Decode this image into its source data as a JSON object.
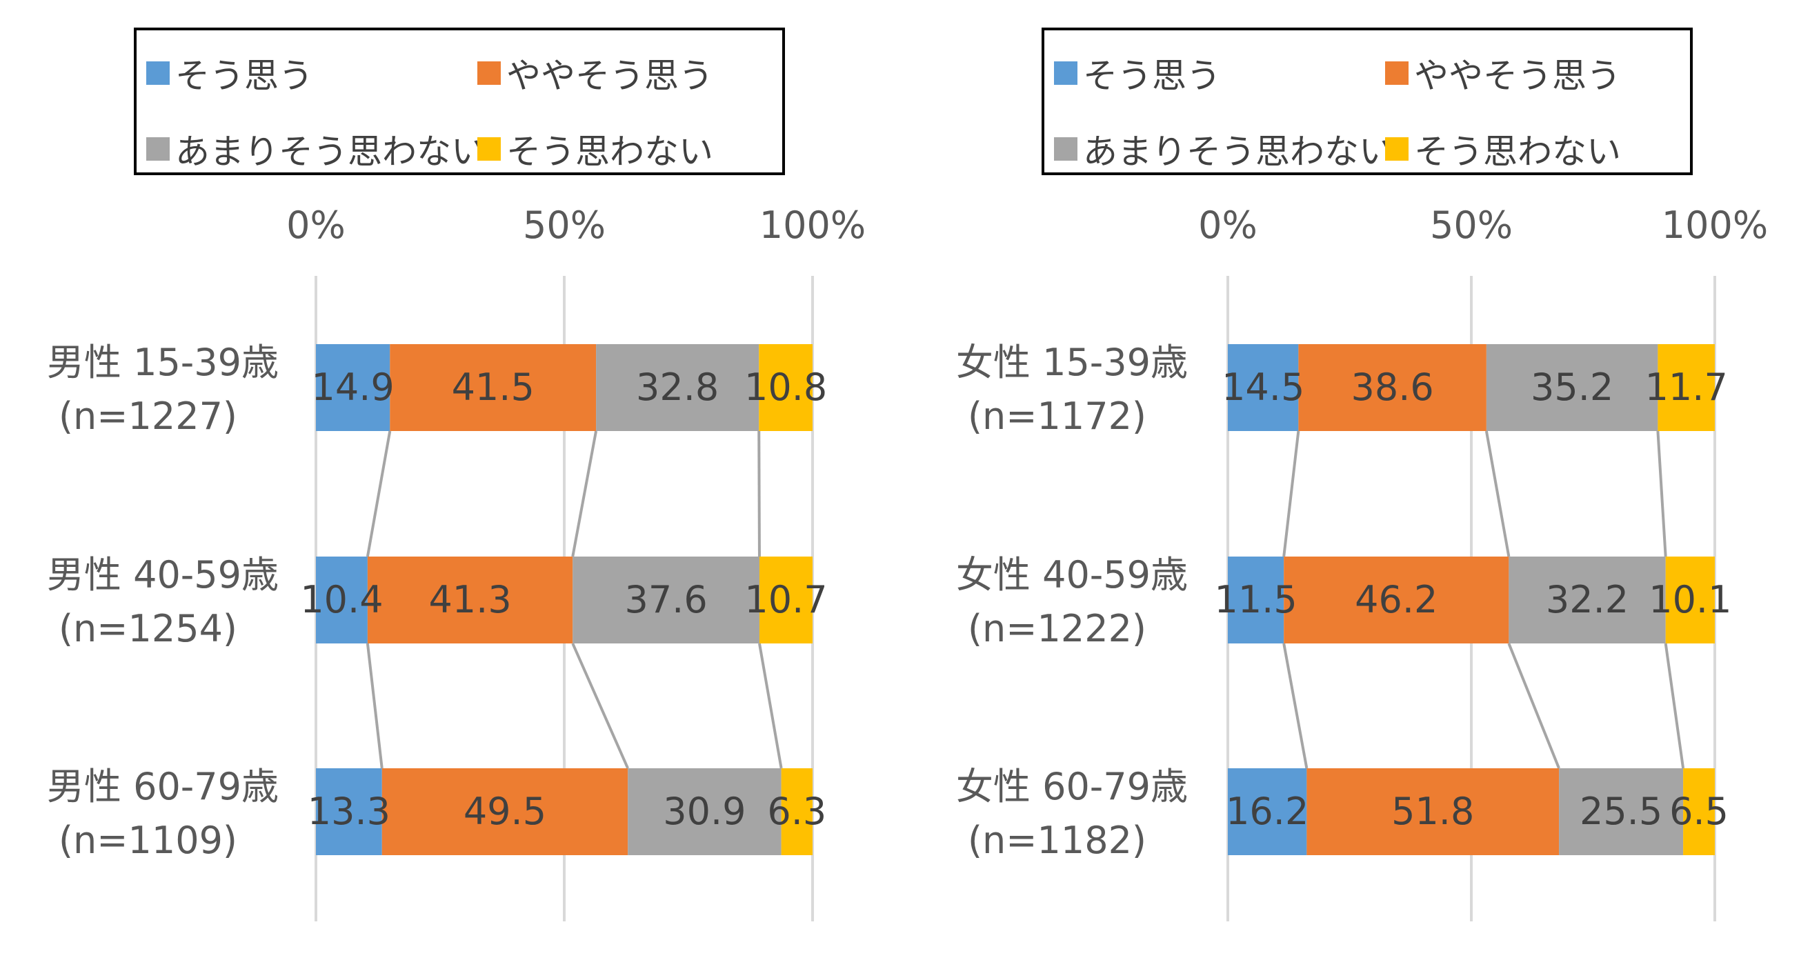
{
  "colors": {
    "sou_omou": "#5B9BD5",
    "yaya_sou_omou": "#ED7D31",
    "amari_sou_omowanai": "#A5A5A5",
    "sou_omowanai": "#FFC000",
    "gridline": "#D9D9D9",
    "connector": "#A5A5A5",
    "text": "#595959"
  },
  "chart_data": [
    {
      "type": "bar",
      "stacked": true,
      "orientation": "horizontal",
      "categories": [
        "男性 15-39歳",
        "男性 40-59歳",
        "男性 60-79歳"
      ],
      "category_sub_labels": [
        "(n=1227)",
        "(n=1254)",
        "(n=1109)"
      ],
      "series": [
        {
          "name": "そう思う",
          "values": [
            14.9,
            10.4,
            13.3
          ]
        },
        {
          "name": "ややそう思う",
          "values": [
            41.5,
            41.3,
            49.5
          ]
        },
        {
          "name": "あまりそう思わない",
          "values": [
            32.8,
            37.6,
            30.9
          ]
        },
        {
          "name": "そう思わない",
          "values": [
            10.8,
            10.7,
            6.3
          ]
        }
      ],
      "x_ticks": [
        "0%",
        "50%",
        "100%"
      ],
      "xlim": [
        0,
        100
      ],
      "grid": true,
      "legend_position": "top",
      "series_lines": true
    },
    {
      "type": "bar",
      "stacked": true,
      "orientation": "horizontal",
      "categories": [
        "女性 15-39歳",
        "女性 40-59歳",
        "女性 60-79歳"
      ],
      "category_sub_labels": [
        "(n=1172)",
        "(n=1222)",
        "(n=1182)"
      ],
      "series": [
        {
          "name": "そう思う",
          "values": [
            14.5,
            11.5,
            16.2
          ]
        },
        {
          "name": "ややそう思う",
          "values": [
            38.6,
            46.2,
            51.8
          ]
        },
        {
          "name": "あまりそう思わない",
          "values": [
            35.2,
            32.2,
            25.5
          ]
        },
        {
          "name": "そう思わない",
          "values": [
            11.7,
            10.1,
            6.5
          ]
        }
      ],
      "x_ticks": [
        "0%",
        "50%",
        "100%"
      ],
      "xlim": [
        0,
        100
      ],
      "grid": true,
      "legend_position": "top",
      "series_lines": true
    }
  ]
}
